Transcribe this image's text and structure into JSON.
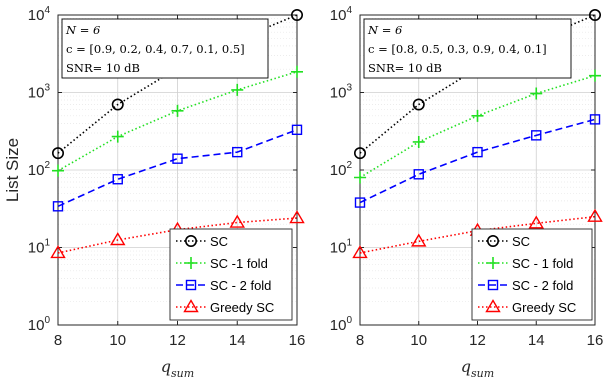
{
  "chart_data": [
    {
      "type": "line",
      "xlabel_base": "q",
      "xlabel_sub": "sum",
      "ylabel": "List Size",
      "yscale": "log",
      "ylim": [
        1,
        10000
      ],
      "xlim": [
        8,
        16
      ],
      "grid": true,
      "legend_position": "bottom-right",
      "x": [
        8,
        10,
        12,
        14,
        16
      ],
      "x_ticks": [
        "8",
        "10",
        "12",
        "14",
        "16"
      ],
      "y_ticks": [
        {
          "base": "10",
          "exp": "0",
          "value": 1
        },
        {
          "base": "10",
          "exp": "1",
          "value": 10
        },
        {
          "base": "10",
          "exp": "2",
          "value": 100
        },
        {
          "base": "10",
          "exp": "3",
          "value": 1000
        },
        {
          "base": "10",
          "exp": "4",
          "value": 10000
        }
      ],
      "annotation": {
        "line1": "N = 6",
        "line2": "c = [0.9, 0.2, 0.4, 0.7, 0.1, 0.5]",
        "line3": "SNR= 10 dB"
      },
      "series": [
        {
          "name": "SC",
          "color": "#000000",
          "marker": "circle",
          "dash": "dotted",
          "values": [
            165,
            700,
            2050,
            4800,
            10000
          ]
        },
        {
          "name": "SC -1 fold",
          "color": "#22e022",
          "marker": "plus",
          "dash": "dotted",
          "values": [
            98,
            270,
            580,
            1080,
            1850
          ]
        },
        {
          "name": "SC - 2 fold",
          "color": "#0000ff",
          "marker": "square",
          "dash": "dashed",
          "values": [
            34,
            76,
            140,
            170,
            330
          ]
        },
        {
          "name": "Greedy SC",
          "color": "#ff0000",
          "marker": "triangle",
          "dash": "dotted",
          "values": [
            8.5,
            12.5,
            17,
            21,
            24
          ]
        }
      ]
    },
    {
      "type": "line",
      "xlabel_base": "q",
      "xlabel_sub": "sum",
      "ylabel": "",
      "yscale": "log",
      "ylim": [
        1,
        10000
      ],
      "xlim": [
        8,
        16
      ],
      "grid": true,
      "legend_position": "bottom-right",
      "x": [
        8,
        10,
        12,
        14,
        16
      ],
      "x_ticks": [
        "8",
        "10",
        "12",
        "14",
        "16"
      ],
      "y_ticks": [
        {
          "base": "10",
          "exp": "0",
          "value": 1
        },
        {
          "base": "10",
          "exp": "1",
          "value": 10
        },
        {
          "base": "10",
          "exp": "2",
          "value": 100
        },
        {
          "base": "10",
          "exp": "3",
          "value": 1000
        },
        {
          "base": "10",
          "exp": "4",
          "value": 10000
        }
      ],
      "annotation": {
        "line1": "N = 6",
        "line2": "c = [0.8, 0.5, 0.3, 0.9, 0.4, 0.1]",
        "line3": "SNR= 10 dB"
      },
      "series": [
        {
          "name": "SC",
          "color": "#000000",
          "marker": "circle",
          "dash": "dotted",
          "values": [
            165,
            700,
            2050,
            4800,
            10000
          ]
        },
        {
          "name": "SC - 1 fold",
          "color": "#22e022",
          "marker": "plus",
          "dash": "dotted",
          "values": [
            80,
            230,
            500,
            970,
            1650
          ]
        },
        {
          "name": "SC - 2 fold",
          "color": "#0000ff",
          "marker": "square",
          "dash": "dashed",
          "values": [
            38,
            88,
            170,
            280,
            450
          ]
        },
        {
          "name": "Greedy SC",
          "color": "#ff0000",
          "marker": "triangle",
          "dash": "dotted",
          "values": [
            8.5,
            12,
            16.5,
            20.5,
            25
          ]
        }
      ]
    }
  ]
}
